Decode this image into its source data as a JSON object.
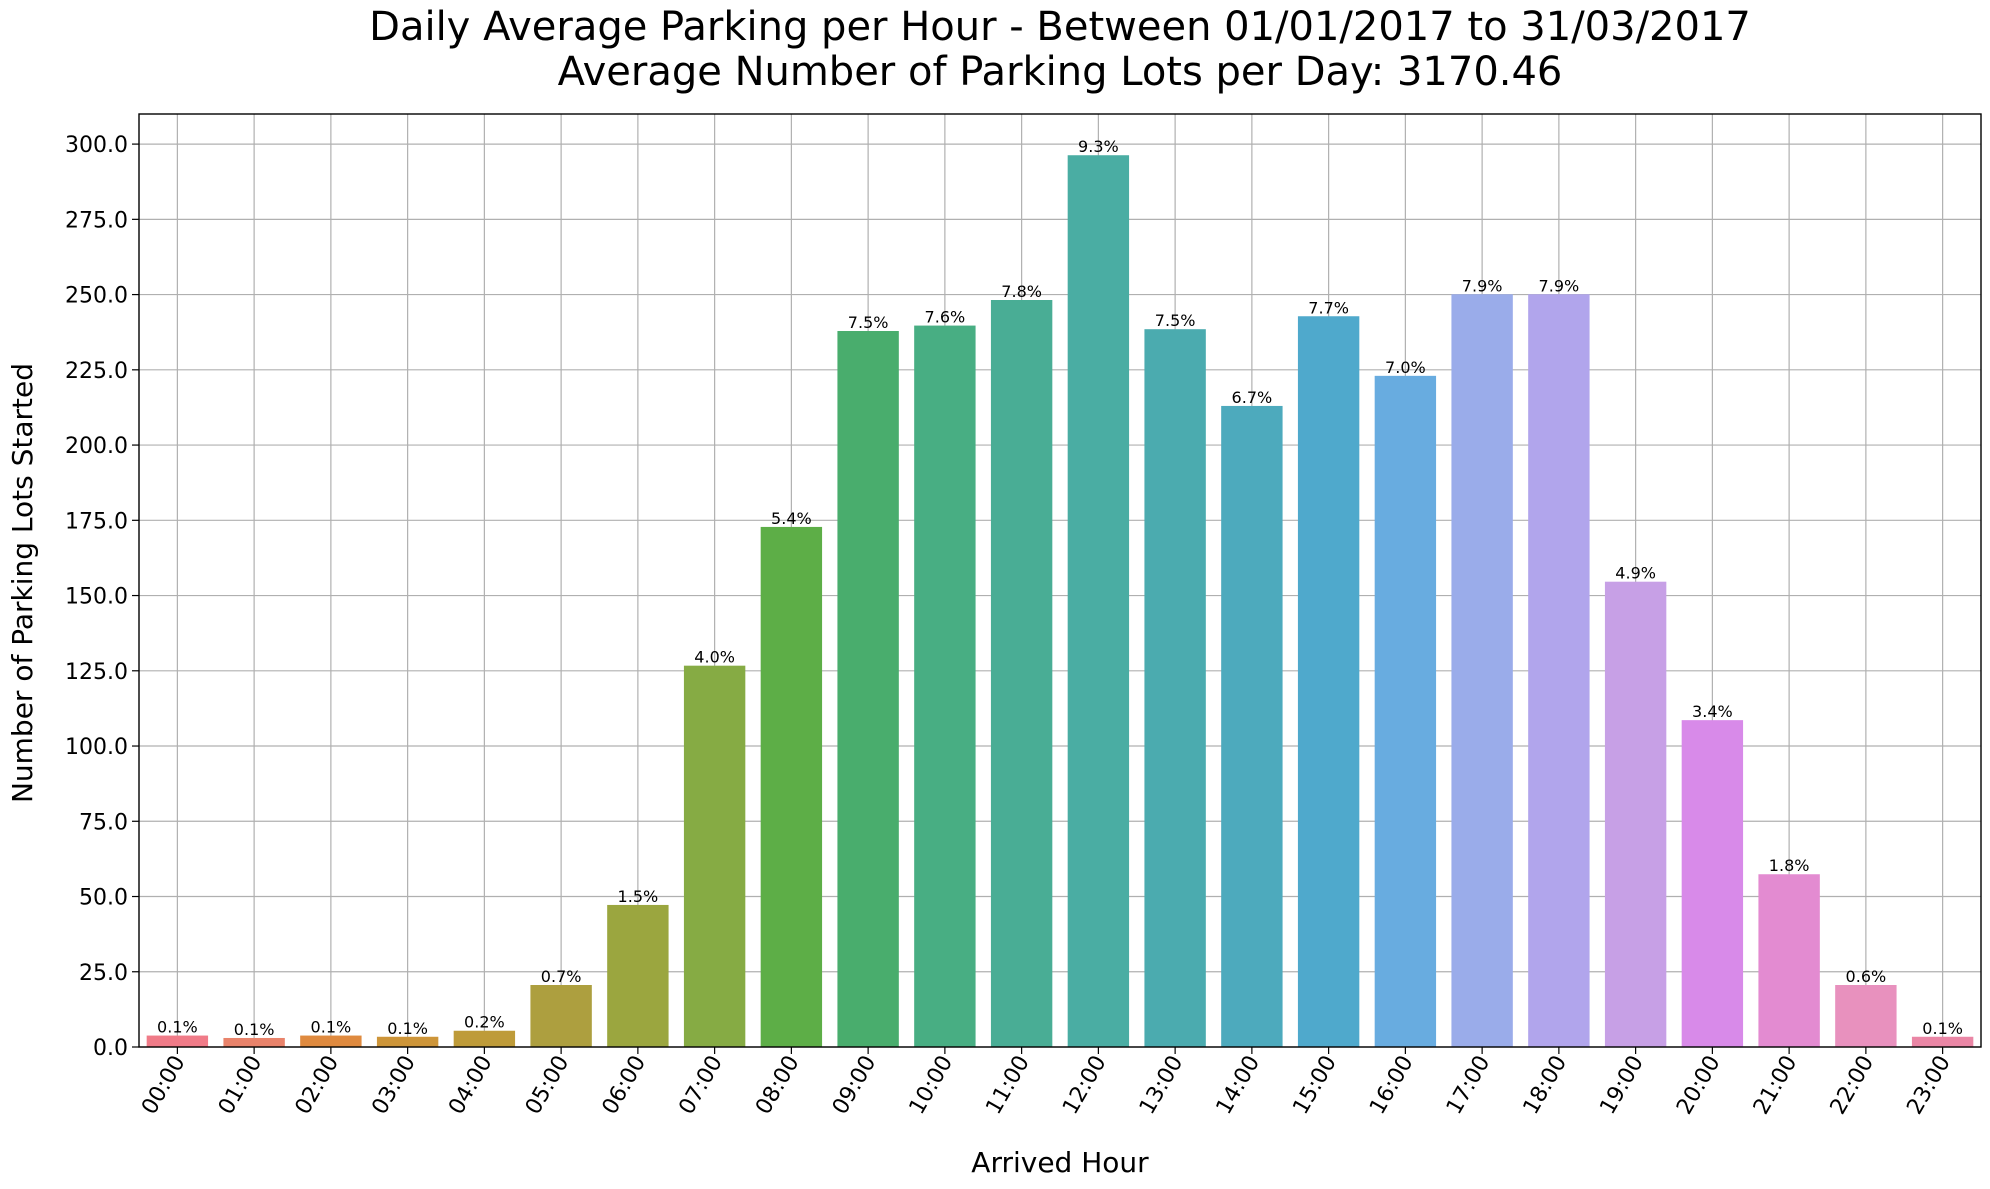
{
  "chart_data": {
    "type": "bar",
    "title": "Daily Average Parking per Hour - Between 01/01/2017 to 31/03/2017",
    "subtitle": "Average Number of Parking Lots per Day: 3170.46",
    "xlabel": "Arrived Hour",
    "ylabel": "Number of Parking Lots Started",
    "ylim": [
      0,
      310
    ],
    "yticks": [
      0,
      25,
      50,
      75,
      100,
      125,
      150,
      175,
      200,
      225,
      250,
      275,
      300
    ],
    "ytick_labels": [
      "0.0",
      "25.0",
      "50.0",
      "75.0",
      "100.0",
      "125.0",
      "150.0",
      "175.0",
      "200.0",
      "225.0",
      "250.0",
      "275.0",
      "300.0"
    ],
    "grid": true,
    "categories": [
      "00:00",
      "01:00",
      "02:00",
      "03:00",
      "04:00",
      "05:00",
      "06:00",
      "07:00",
      "08:00",
      "09:00",
      "10:00",
      "11:00",
      "12:00",
      "13:00",
      "14:00",
      "15:00",
      "16:00",
      "17:00",
      "18:00",
      "19:00",
      "20:00",
      "21:00",
      "22:00",
      "23:00"
    ],
    "values": [
      3.8,
      3.0,
      3.8,
      3.4,
      5.4,
      20.6,
      47.2,
      126.7,
      172.8,
      237.9,
      239.7,
      248.2,
      296.3,
      238.5,
      213.0,
      242.8,
      223.0,
      250.1,
      250.1,
      154.6,
      108.6,
      57.4,
      20.6,
      3.4
    ],
    "labels": [
      "0.1%",
      "0.1%",
      "0.1%",
      "0.1%",
      "0.2%",
      "0.7%",
      "1.5%",
      "4.0%",
      "5.4%",
      "7.5%",
      "7.6%",
      "7.8%",
      "9.3%",
      "7.5%",
      "6.7%",
      "7.7%",
      "7.0%",
      "7.9%",
      "7.9%",
      "4.9%",
      "3.4%",
      "1.8%",
      "0.6%",
      "0.1%"
    ],
    "colors": [
      "#f07b88",
      "#e9836b",
      "#df8a3f",
      "#cd9539",
      "#be9b39",
      "#ad9f3f",
      "#9ba63f",
      "#86ab44",
      "#5dae47",
      "#49ad6d",
      "#48ae83",
      "#49ad95",
      "#4aada3",
      "#4babaf",
      "#4daabd",
      "#4fa9cc",
      "#68ace0",
      "#9aacea",
      "#b1a5ec",
      "#c7a0e6",
      "#d88ae9",
      "#e38bd1",
      "#e891be",
      "#ea86a5"
    ]
  }
}
